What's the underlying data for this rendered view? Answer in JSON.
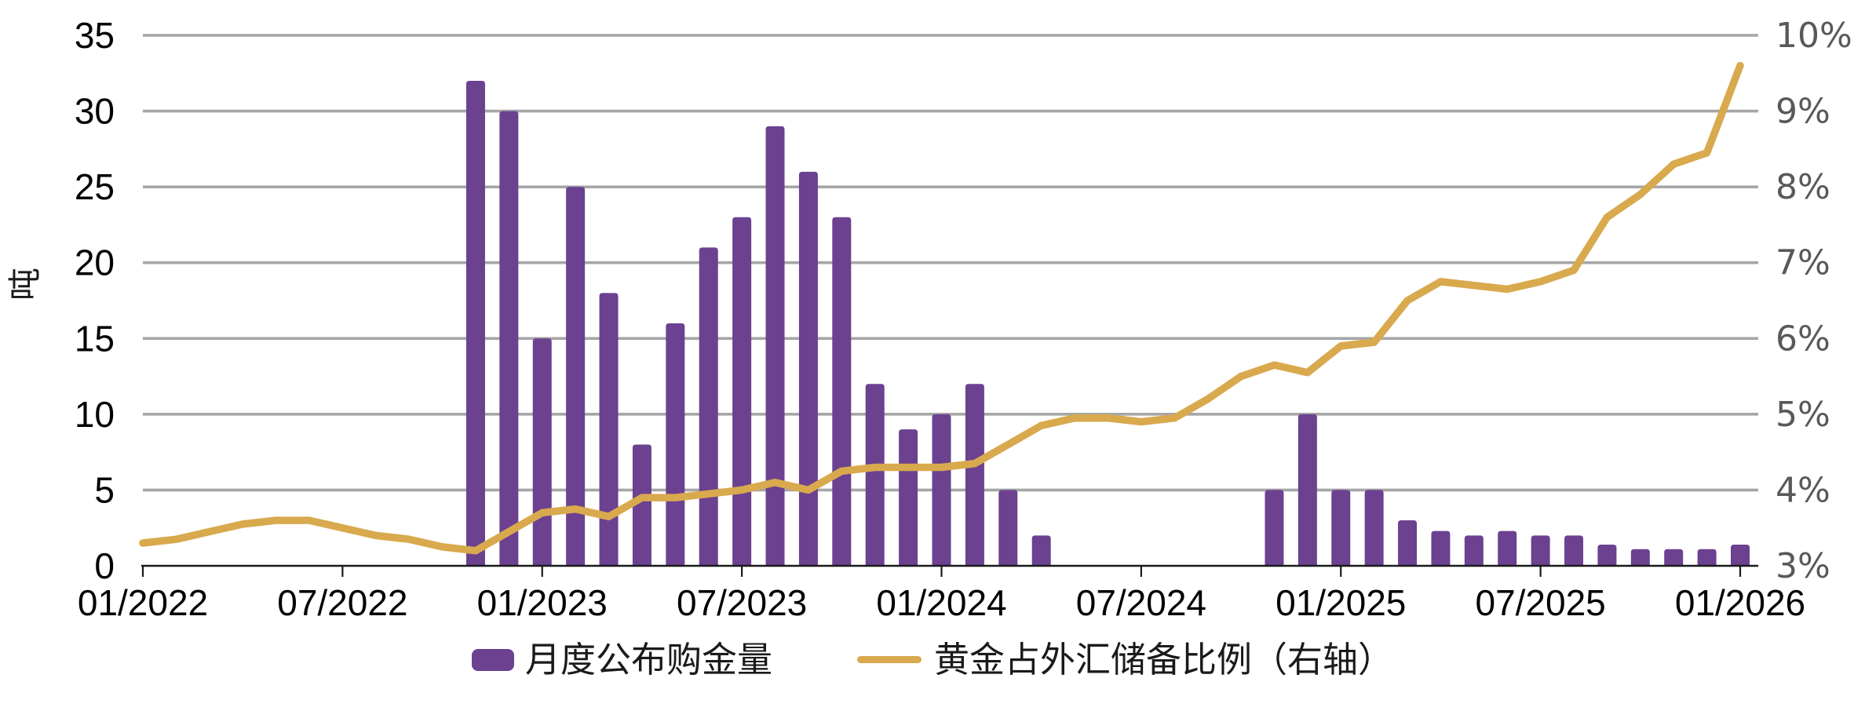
{
  "chart_data": {
    "type": "bar",
    "subtype": "combo-bar-line-dual-axis",
    "months": [
      "2022-01",
      "2022-02",
      "2022-03",
      "2022-04",
      "2022-05",
      "2022-06",
      "2022-07",
      "2022-08",
      "2022-09",
      "2022-10",
      "2022-11",
      "2022-12",
      "2023-01",
      "2023-02",
      "2023-03",
      "2023-04",
      "2023-05",
      "2023-06",
      "2023-07",
      "2023-08",
      "2023-09",
      "2023-10",
      "2023-11",
      "2023-12",
      "2024-01",
      "2024-02",
      "2024-03",
      "2024-04",
      "2024-05",
      "2024-06",
      "2024-07",
      "2024-08",
      "2024-09",
      "2024-10",
      "2024-11",
      "2024-12",
      "2025-01",
      "2025-02",
      "2025-03",
      "2025-04",
      "2025-05",
      "2025-06",
      "2025-07",
      "2025-08",
      "2025-09",
      "2025-10",
      "2025-11",
      "2025-12",
      "2026-01"
    ],
    "series": [
      {
        "name": "月度公布购金量",
        "type": "bar",
        "axis": "left",
        "unit": "吨",
        "color": "#6B4190",
        "values": [
          0,
          0,
          0,
          0,
          0,
          0,
          0,
          0,
          0,
          0,
          32,
          30,
          15,
          25,
          18,
          8,
          16,
          21,
          23,
          29,
          26,
          23,
          12,
          9,
          10,
          12,
          5,
          2,
          0,
          0,
          0,
          0,
          0,
          0,
          5,
          10,
          5,
          5,
          3,
          2.3,
          2,
          2.3,
          2,
          2,
          1.4,
          1.1,
          1.1,
          1.1,
          1.4
        ]
      },
      {
        "name": "黄金占外汇储备比例（右轴）",
        "type": "line",
        "axis": "right",
        "unit": "%",
        "color": "#D9A94E",
        "values": [
          3.3,
          3.35,
          3.45,
          3.55,
          3.6,
          3.6,
          3.5,
          3.4,
          3.35,
          3.25,
          3.2,
          3.45,
          3.7,
          3.75,
          3.65,
          3.9,
          3.9,
          3.95,
          4.0,
          4.1,
          4.0,
          4.25,
          4.3,
          4.3,
          4.3,
          4.35,
          4.6,
          4.85,
          4.95,
          4.95,
          4.9,
          4.95,
          5.2,
          5.5,
          5.65,
          5.55,
          5.9,
          5.95,
          6.5,
          6.75,
          6.7,
          6.65,
          6.75,
          6.9,
          7.6,
          7.9,
          8.3,
          8.45,
          9.6
        ]
      }
    ],
    "left_axis": {
      "title": "吨",
      "min": 0,
      "max": 35,
      "step": 5,
      "tick_labels": [
        "0",
        "5",
        "10",
        "15",
        "20",
        "25",
        "30",
        "35"
      ]
    },
    "right_axis": {
      "min": 3,
      "max": 10,
      "step": 1,
      "tick_labels": [
        "3%",
        "4%",
        "5%",
        "6%",
        "7%",
        "8%",
        "9%",
        "10%"
      ]
    },
    "x_axis": {
      "tick_labels": [
        "01/2022",
        "07/2022",
        "01/2023",
        "07/2023",
        "01/2024",
        "07/2024",
        "01/2025",
        "07/2025",
        "01/2026"
      ],
      "tick_every_months": 6
    },
    "legend": {
      "position": "bottom-center",
      "items": [
        "月度公布购金量",
        "黄金占外汇储备比例（右轴）"
      ]
    },
    "grid": "horizontal",
    "colors": {
      "bar": "#6B4190",
      "line": "#D9A94E",
      "gridline": "#A6A6A6",
      "axis_line": "#1a1a1a",
      "left_tick_label": "#000000",
      "x_tick_label": "#000000",
      "right_tick_label": "#595959",
      "background": "#ffffff"
    }
  }
}
